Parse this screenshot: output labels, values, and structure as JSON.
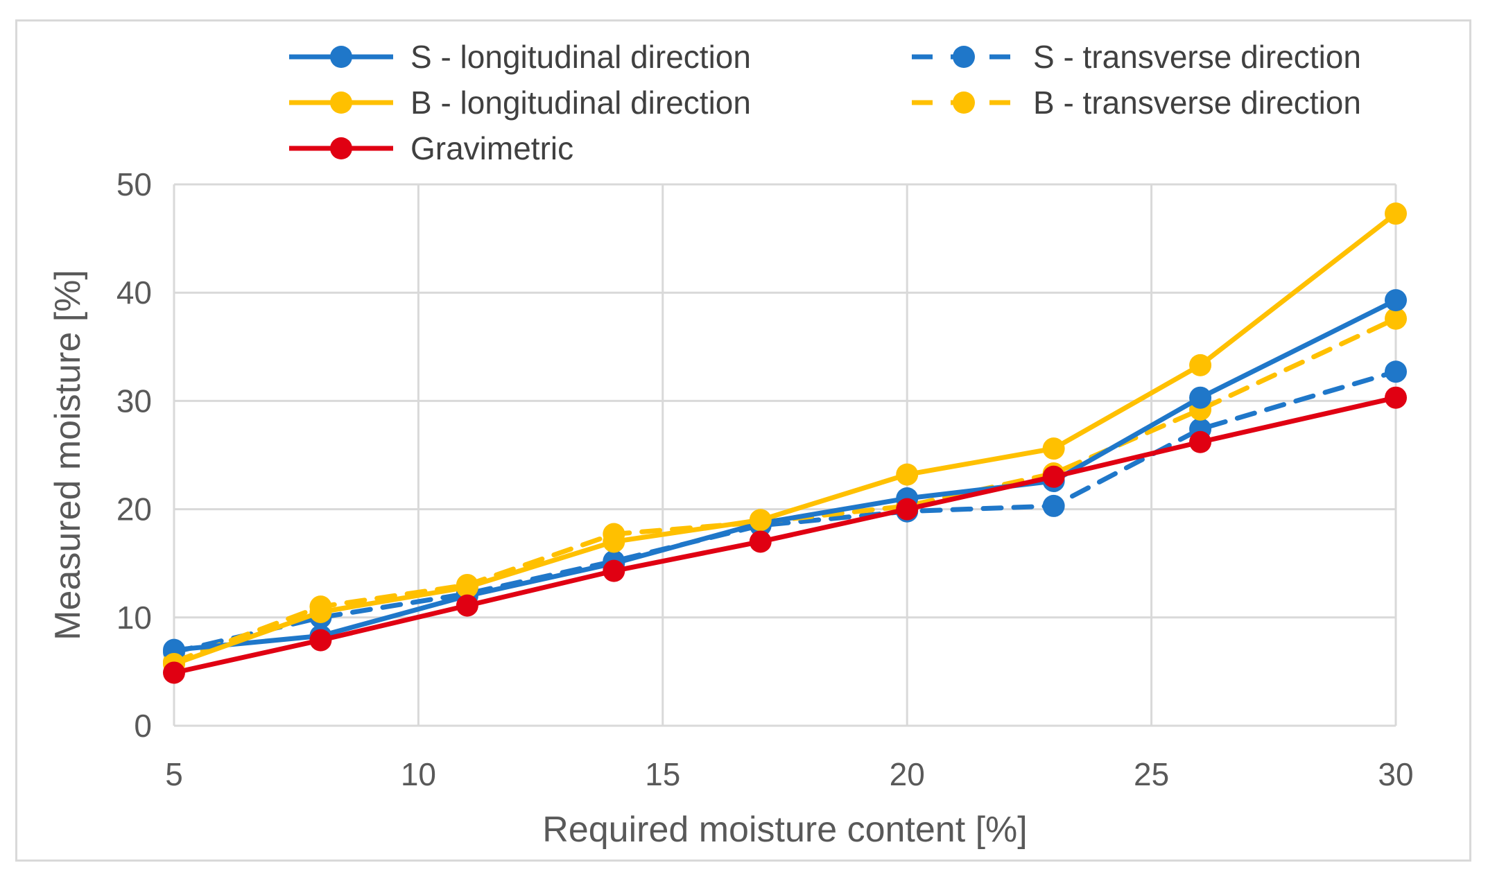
{
  "chart_data": {
    "type": "line",
    "title": "",
    "xlabel": "Required moisture content [%]",
    "ylabel": "Measured moisture [%]",
    "xlim": [
      5,
      30
    ],
    "ylim": [
      0,
      50
    ],
    "xticks": [
      5,
      10,
      15,
      20,
      25,
      30
    ],
    "yticks": [
      0,
      10,
      20,
      30,
      40,
      50
    ],
    "grid": true,
    "legend_position": "top",
    "x": [
      5,
      8,
      11,
      14,
      17,
      20,
      23,
      26,
      30
    ],
    "series": [
      {
        "name": "S - longitudinal direction",
        "color": "#1f77c9",
        "dash": "solid",
        "values": [
          7.0,
          8.3,
          12.0,
          15.0,
          18.7,
          21.0,
          22.6,
          30.3,
          39.3
        ]
      },
      {
        "name": "B - longitudinal direction",
        "color": "#ffc000",
        "dash": "solid",
        "values": [
          5.7,
          10.5,
          12.8,
          17.0,
          19.0,
          23.2,
          25.6,
          33.3,
          47.3
        ]
      },
      {
        "name": "Gravimetric",
        "color": "#e00012",
        "dash": "solid",
        "values": [
          4.9,
          7.9,
          11.1,
          14.3,
          17.0,
          20.0,
          23.0,
          26.2,
          30.3
        ]
      },
      {
        "name": "S - transverse direction",
        "color": "#1f77c9",
        "dash": "dashed",
        "values": [
          6.8,
          10.0,
          12.2,
          15.2,
          18.5,
          19.8,
          20.3,
          27.4,
          32.7
        ]
      },
      {
        "name": "B - transverse direction",
        "color": "#ffc000",
        "dash": "dashed",
        "values": [
          5.9,
          11.0,
          13.0,
          17.7,
          18.8,
          20.3,
          23.3,
          29.2,
          37.6
        ]
      }
    ]
  }
}
